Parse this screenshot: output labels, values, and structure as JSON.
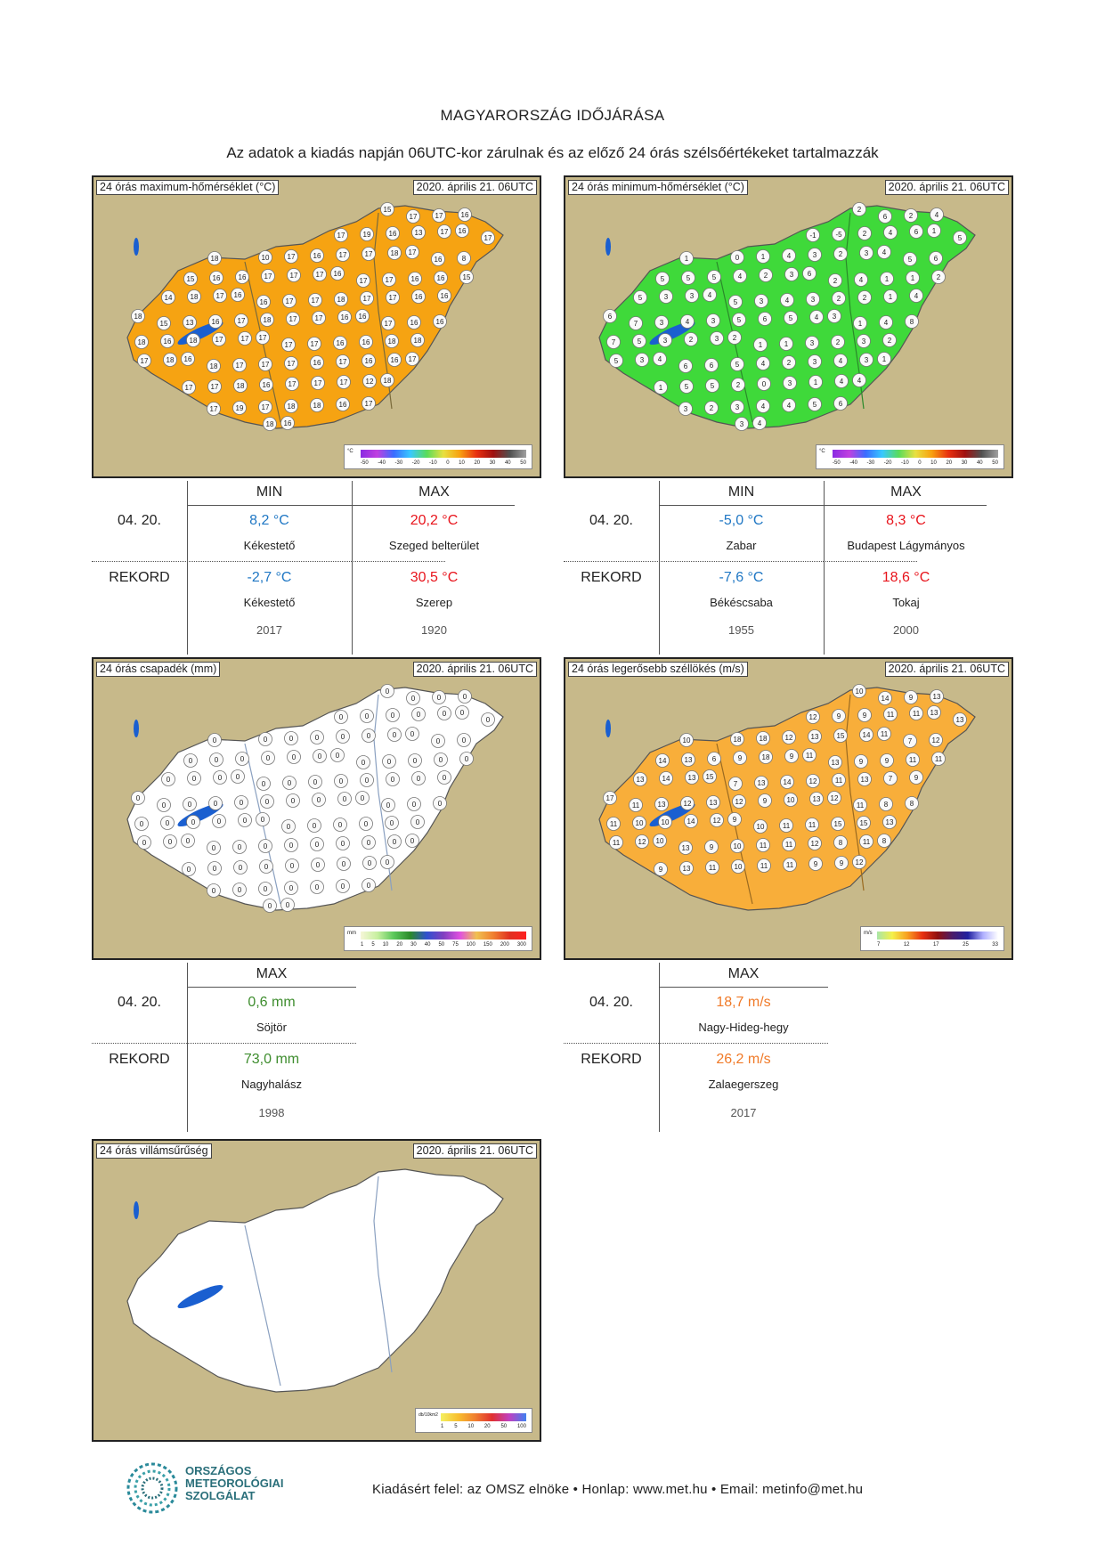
{
  "header": {
    "title": "MAGYARORSZÁG IDŐJÁRÁSA",
    "subtitle": "Az adatok a kiadás napján 06UTC-kor zárulnak és az előző 24 órás szélsőértékeket tartalmazzák"
  },
  "maps": {
    "tmax": {
      "label": "24 órás maximum-hőmérséklet (°C)",
      "date": "2020. április 21. 06UTC",
      "scale_unit": "°C",
      "ticks": [
        "-50",
        "-40",
        "-30",
        "-20",
        "-10",
        "0",
        "10",
        "20",
        "30",
        "40",
        "50"
      ],
      "base_color": "#f6a312",
      "values": [
        "15",
        "17",
        "17",
        "16",
        "17",
        "19",
        "16",
        "13",
        "17",
        "16",
        "17",
        "18",
        "10",
        "17",
        "16",
        "17",
        "17",
        "18",
        "17",
        "16",
        "8",
        "15",
        "16",
        "16",
        "17",
        "17",
        "17",
        "16",
        "17",
        "17",
        "16",
        "16",
        "15",
        "14",
        "18",
        "17",
        "16",
        "16",
        "17",
        "17",
        "18",
        "17",
        "17",
        "16",
        "16",
        "18",
        "15",
        "13",
        "16",
        "17",
        "18",
        "17",
        "17",
        "16",
        "16",
        "17",
        "16",
        "16",
        "18",
        "16",
        "18",
        "17",
        "17",
        "17",
        "17",
        "17",
        "16",
        "16",
        "18",
        "18",
        "17",
        "18",
        "16",
        "18",
        "17",
        "17",
        "17",
        "16",
        "17",
        "16",
        "16",
        "17",
        "17",
        "17",
        "18",
        "16",
        "17",
        "17",
        "17",
        "12",
        "18",
        "17",
        "19",
        "17",
        "18",
        "18",
        "16",
        "17",
        "18",
        "16"
      ]
    },
    "tmin": {
      "label": "24 órás minimum-hőmérséklet (°C)",
      "date": "2020. április 21. 06UTC",
      "scale_unit": "°C",
      "ticks": [
        "-50",
        "-40",
        "-30",
        "-20",
        "-10",
        "0",
        "10",
        "20",
        "30",
        "40",
        "50"
      ],
      "base_color": "#3fd93a",
      "values": [
        "2",
        "6",
        "2",
        "4",
        "-1",
        "-5",
        "2",
        "4",
        "6",
        "1",
        "5",
        "1",
        "0",
        "1",
        "4",
        "3",
        "2",
        "3",
        "4",
        "5",
        "6",
        "5",
        "5",
        "5",
        "4",
        "2",
        "3",
        "6",
        "2",
        "4",
        "1",
        "1",
        "2",
        "5",
        "3",
        "3",
        "4",
        "5",
        "3",
        "4",
        "3",
        "2",
        "2",
        "1",
        "4",
        "6",
        "7",
        "3",
        "4",
        "3",
        "5",
        "6",
        "5",
        "4",
        "3",
        "1",
        "4",
        "8",
        "7",
        "5",
        "3",
        "2",
        "3",
        "2",
        "1",
        "1",
        "3",
        "2",
        "3",
        "2",
        "5",
        "3",
        "4",
        "6",
        "6",
        "5",
        "4",
        "2",
        "3",
        "4",
        "3",
        "1",
        "1",
        "5",
        "5",
        "2",
        "0",
        "3",
        "1",
        "4",
        "4",
        "3",
        "2",
        "3",
        "4",
        "4",
        "5",
        "6",
        "3",
        "4",
        "3"
      ]
    },
    "precip": {
      "label": "24 órás csapadék (mm)",
      "date": "2020. április 21. 06UTC",
      "scale_unit": "mm",
      "ticks": [
        "1",
        "5",
        "10",
        "20",
        "30",
        "40",
        "50",
        "75",
        "100",
        "150",
        "200",
        "300"
      ],
      "base_color": "#ffffff",
      "values": [
        "0",
        "0",
        "0",
        "0",
        "0",
        "0",
        "0",
        "0",
        "0",
        "0",
        "0",
        "0",
        "0",
        "0",
        "0",
        "0",
        "0",
        "0",
        "0",
        "0",
        "0",
        "0",
        "0",
        "0",
        "0",
        "0",
        "0",
        "0",
        "0",
        "0",
        "0",
        "0",
        "0",
        "0",
        "0",
        "0",
        "0",
        "0",
        "0",
        "0",
        "0",
        "0",
        "0",
        "0",
        "0",
        "0",
        "0",
        "0",
        "0",
        "0",
        "0",
        "0",
        "0",
        "0",
        "0",
        "0",
        "0",
        "0",
        "0",
        "0",
        "0",
        "0",
        "0",
        "0",
        "0",
        "0",
        "0",
        "0",
        "0",
        "0",
        "0",
        "0",
        "0",
        "0",
        "0",
        "0",
        "0",
        "0",
        "0",
        "0",
        "0",
        "0",
        "0",
        "0",
        "0",
        "0",
        "0",
        "0",
        "0",
        "0",
        "0",
        "0",
        "0",
        "0",
        "0",
        "0",
        "0",
        "0",
        "0",
        "0"
      ]
    },
    "wind": {
      "label": "24 órás legerősebb széllökés (m/s)",
      "date": "2020. április 21. 06UTC",
      "scale_unit": "m/s",
      "ticks": [
        "7",
        "12",
        "17",
        "25",
        "33"
      ],
      "base_color": "#f8ae3a",
      "values": [
        "10",
        "14",
        "9",
        "13",
        "12",
        "9",
        "9",
        "11",
        "11",
        "13",
        "13",
        "10",
        "18",
        "18",
        "12",
        "13",
        "15",
        "14",
        "11",
        "7",
        "12",
        "14",
        "13",
        "6",
        "9",
        "18",
        "9",
        "11",
        "13",
        "9",
        "9",
        "11",
        "11",
        "13",
        "14",
        "13",
        "15",
        "7",
        "13",
        "14",
        "12",
        "11",
        "13",
        "7",
        "9",
        "17",
        "11",
        "13",
        "12",
        "13",
        "12",
        "9",
        "10",
        "13",
        "12",
        "11",
        "8",
        "8",
        "11",
        "10",
        "10",
        "14",
        "12",
        "9",
        "10",
        "11",
        "11",
        "15",
        "15",
        "13",
        "11",
        "12",
        "10",
        "13",
        "9",
        "10",
        "11",
        "11",
        "12",
        "8",
        "11",
        "8",
        "9",
        "13",
        "11",
        "10",
        "11",
        "11",
        "9",
        "9",
        "12"
      ]
    },
    "lightning": {
      "label": "24 órás villámsűrűség",
      "date": "2020. április 21. 06UTC",
      "scale_unit": "db/10km2",
      "ticks": [
        "1",
        "5",
        "10",
        "20",
        "50",
        "100"
      ],
      "base_color": "#ffffff",
      "values": []
    }
  },
  "tables": {
    "temp_max_min": {
      "col_min": "MIN",
      "col_max": "MAX",
      "row1_label": "04. 20.",
      "row1_min": "8,2 °C",
      "row1_min_place": "Kékestető",
      "row1_max": "20,2 °C",
      "row1_max_place": "Szeged belterület",
      "row2_label": "REKORD",
      "row2_min": "-2,7 °C",
      "row2_min_place": "Kékestető",
      "row2_min_year": "2017",
      "row2_max": "30,5 °C",
      "row2_max_place": "Szerep",
      "row2_max_year": "1920"
    },
    "temp_min": {
      "col_min": "MIN",
      "col_max": "MAX",
      "row1_label": "04. 20.",
      "row1_min": "-5,0 °C",
      "row1_min_place": "Zabar",
      "row1_max": "8,3 °C",
      "row1_max_place": "Budapest Lágymányos",
      "row2_label": "REKORD",
      "row2_min": "-7,6 °C",
      "row2_min_place": "Békéscsaba",
      "row2_min_year": "1955",
      "row2_max": "18,6 °C",
      "row2_max_place": "Tokaj",
      "row2_max_year": "2000"
    },
    "precip": {
      "col_max": "MAX",
      "row1_label": "04. 20.",
      "row1_max": "0,6 mm",
      "row1_max_place": "Söjtör",
      "row2_label": "REKORD",
      "row2_max": "73,0 mm",
      "row2_max_place": "Nagyhalász",
      "row2_max_year": "1998"
    },
    "wind": {
      "col_max": "MAX",
      "row1_label": "04. 20.",
      "row1_max": "18,7 m/s",
      "row1_max_place": "Nagy-Hideg-hegy",
      "row2_label": "REKORD",
      "row2_max": "26,2 m/s",
      "row2_max_place": "Zalaegerszeg",
      "row2_max_year": "2017"
    }
  },
  "footer": {
    "logo_line1": "ORSZÁGOS",
    "logo_line2": "METEOROLÓGIAI",
    "logo_line3": "SZOLGÁLAT",
    "text": "Kiadásért felel: az OMSZ elnöke • Honlap: www.met.hu • Email: metinfo@met.hu"
  }
}
